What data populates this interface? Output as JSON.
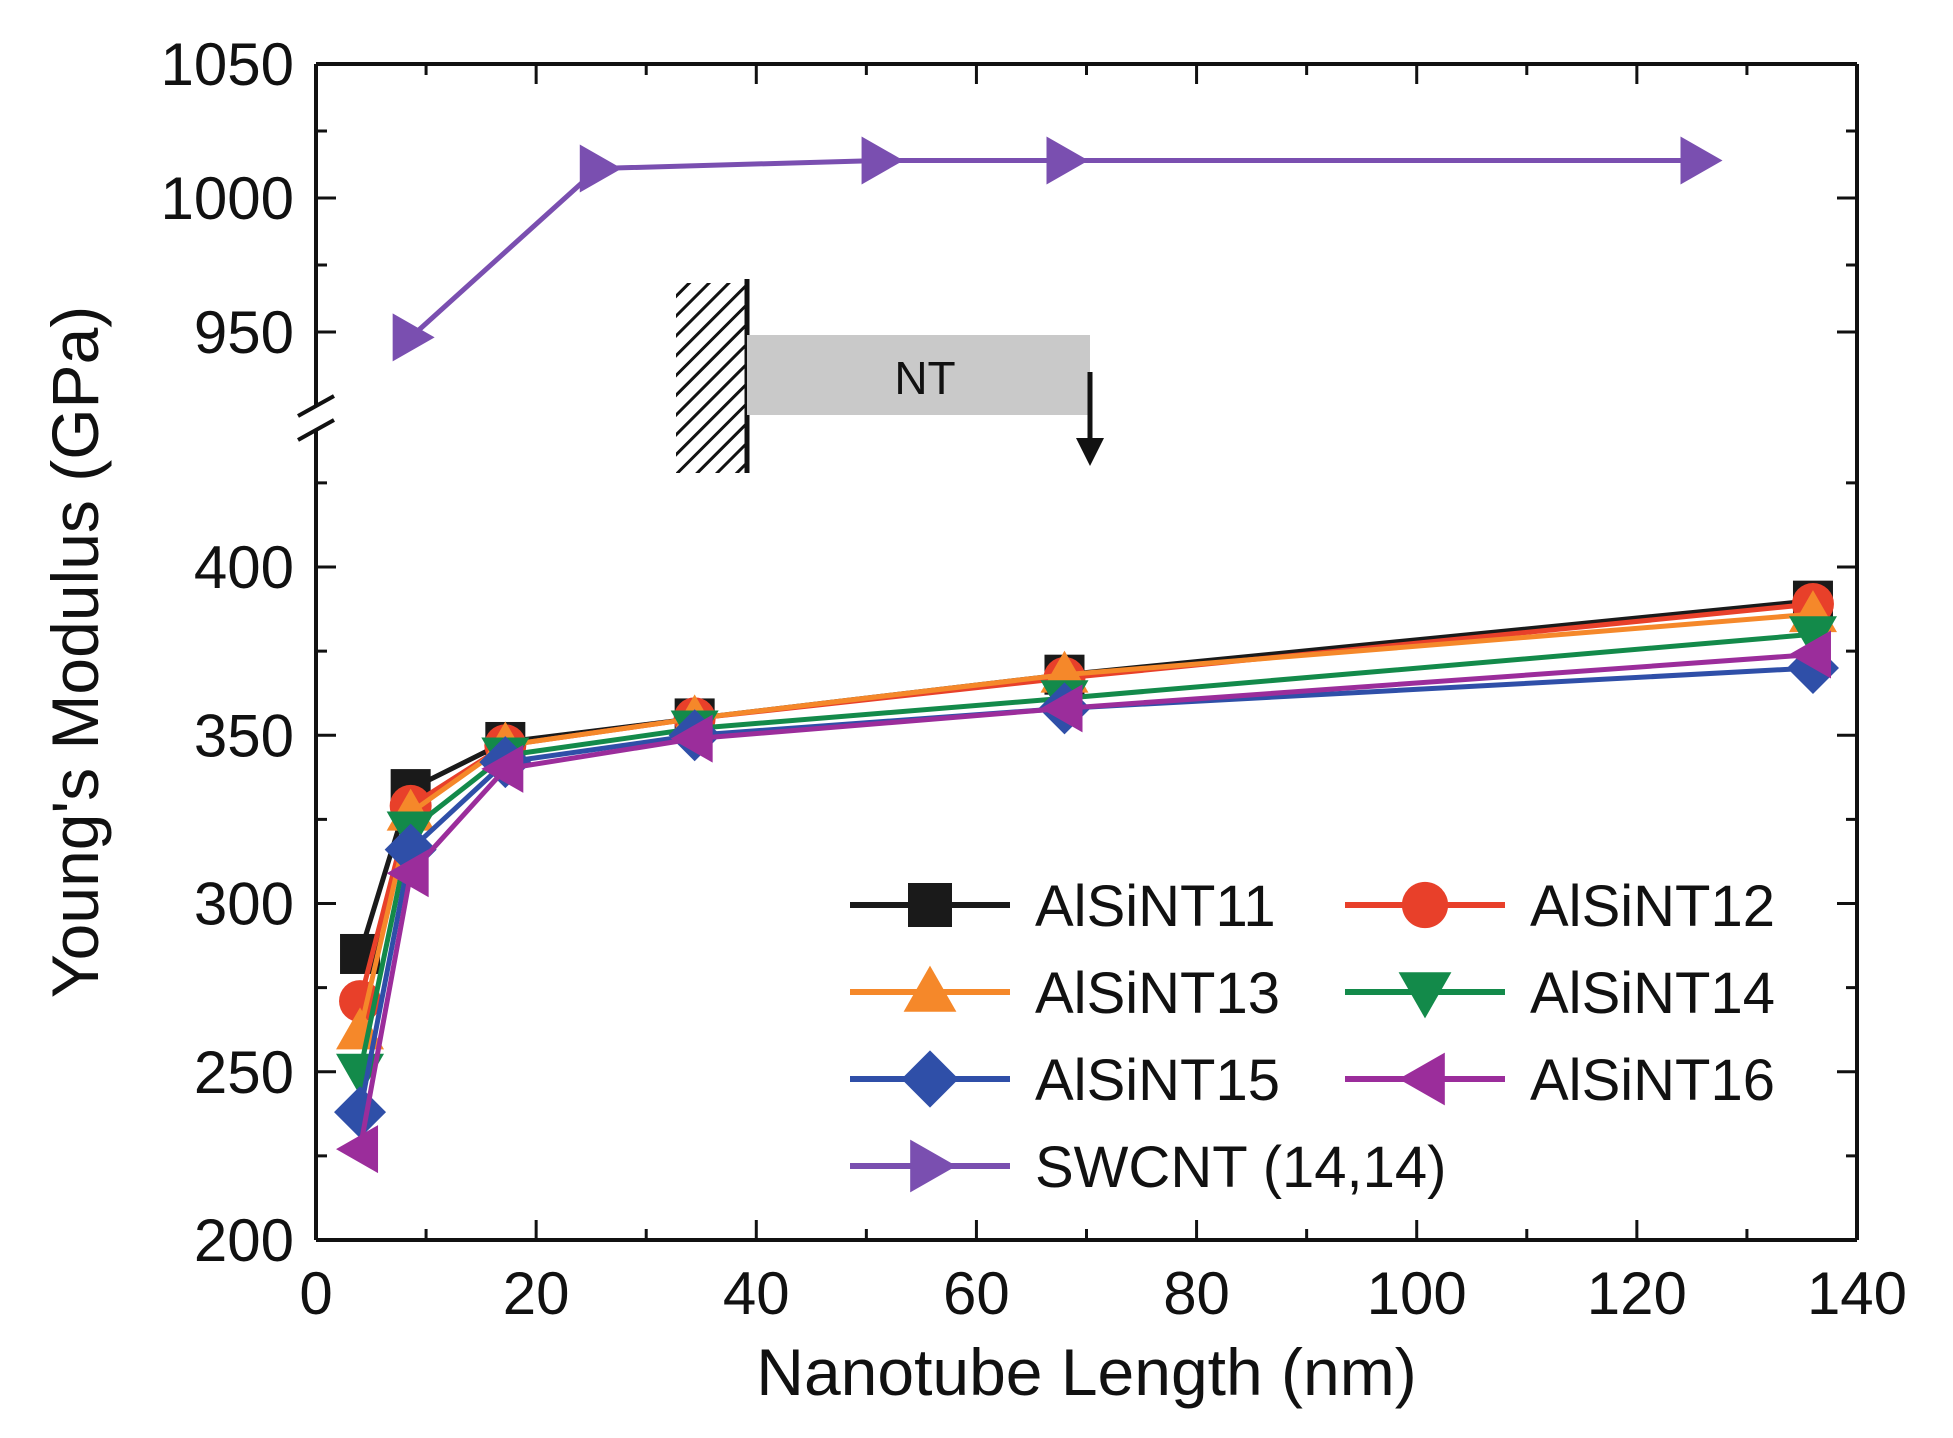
{
  "chart_data": {
    "type": "line",
    "title": "",
    "xlabel": "Nanotube Length (nm)",
    "ylabel": "Young's Modulus (GPa)",
    "xlim": [
      0,
      140
    ],
    "x_ticks": [
      0,
      20,
      40,
      60,
      80,
      100,
      120,
      140
    ],
    "y_broken_axis": true,
    "ylim_lower": [
      200,
      450
    ],
    "ylim_upper": [
      915,
      1050
    ],
    "y_ticks_lower": [
      200,
      250,
      300,
      350,
      400
    ],
    "y_ticks_upper": [
      950,
      1000,
      1050
    ],
    "x_tick_labels": [
      "0",
      "20",
      "40",
      "60",
      "80",
      "100",
      "120",
      "140"
    ],
    "y_tick_labels_lower": [
      "200",
      "250",
      "300",
      "350",
      "400"
    ],
    "y_tick_labels_upper": [
      "950",
      "1000",
      "1050"
    ],
    "legend_position": "bottom-right",
    "series": [
      {
        "name": "AlSiNT11",
        "color": "#1a1a1a",
        "marker": "square",
        "dash": true,
        "x": [
          4,
          8.6,
          17.2,
          34.4,
          68,
          136
        ],
        "y": [
          285,
          334,
          348,
          355,
          368,
          390
        ]
      },
      {
        "name": "AlSiNT12",
        "color": "#e8402a",
        "marker": "circle",
        "dash": true,
        "x": [
          4,
          8.6,
          17.2,
          34.4,
          68,
          136
        ],
        "y": [
          271,
          329,
          347,
          355,
          367,
          389
        ]
      },
      {
        "name": "AlSiNT13",
        "color": "#f5882a",
        "marker": "triangle-up",
        "dash": true,
        "x": [
          4,
          8.6,
          17.2,
          34.4,
          68,
          136
        ],
        "y": [
          262,
          327,
          347,
          355,
          368,
          386
        ]
      },
      {
        "name": "AlSiNT14",
        "color": "#138a4a",
        "marker": "triangle-down",
        "dash": true,
        "x": [
          4,
          8.6,
          17.2,
          34.4,
          68,
          136
        ],
        "y": [
          250,
          322,
          344,
          352,
          361,
          380
        ]
      },
      {
        "name": "AlSiNT15",
        "color": "#2f4fa8",
        "marker": "diamond",
        "dash": false,
        "x": [
          4,
          8.6,
          17.2,
          34.4,
          68,
          136
        ],
        "y": [
          238,
          316,
          342,
          350,
          358,
          370
        ]
      },
      {
        "name": "AlSiNT16",
        "color": "#9b2d9b",
        "marker": "triangle-left",
        "dash": true,
        "x": [
          4,
          8.6,
          17.2,
          34.4,
          68,
          136
        ],
        "y": [
          227,
          309,
          340,
          349,
          358,
          374
        ]
      },
      {
        "name": "SWCNT (14,14)",
        "color": "#7a4fb0",
        "marker": "triangle-right",
        "dash": true,
        "x": [
          8.6,
          25.6,
          51.2,
          68,
          125.6
        ],
        "y": [
          948,
          1011,
          1014,
          1014,
          1014
        ]
      }
    ],
    "inset": {
      "label": "NT"
    }
  },
  "legend": {
    "rows": [
      [
        "AlSiNT11",
        "AlSiNT12"
      ],
      [
        "AlSiNT13",
        "AlSiNT14"
      ],
      [
        "AlSiNT15",
        "AlSiNT16"
      ],
      [
        "SWCNT (14,14)"
      ]
    ]
  }
}
